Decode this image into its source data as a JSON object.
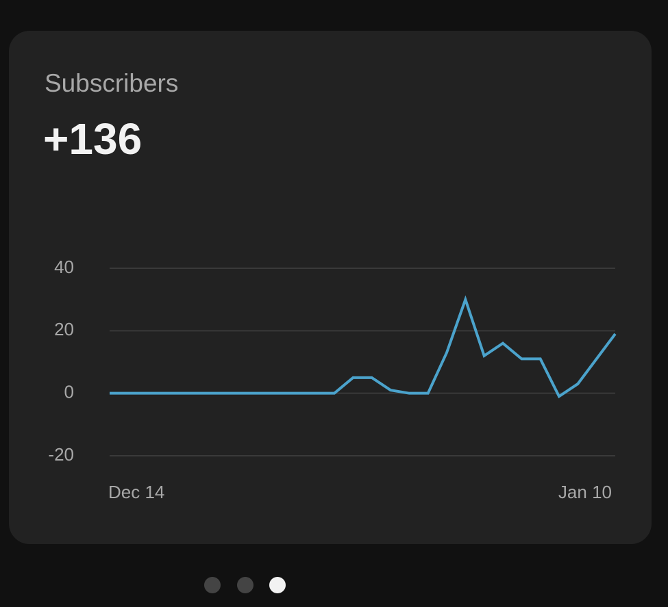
{
  "card": {
    "title": "Subscribers",
    "total": "+136"
  },
  "chart_data": {
    "type": "line",
    "categories": [
      "Dec 14",
      null,
      null,
      null,
      null,
      null,
      null,
      null,
      null,
      null,
      null,
      null,
      null,
      null,
      null,
      null,
      null,
      null,
      null,
      null,
      null,
      null,
      null,
      null,
      null,
      null,
      null,
      "Jan 10"
    ],
    "values": [
      0,
      0,
      0,
      0,
      0,
      0,
      0,
      0,
      0,
      0,
      0,
      0,
      0,
      5,
      5,
      1,
      0,
      0,
      13,
      30,
      12,
      16,
      11,
      11,
      -1,
      3,
      11,
      19
    ],
    "color": "#4ba3cc",
    "ylim": [
      -20,
      40
    ],
    "yticks": [
      -20,
      0,
      20,
      40
    ],
    "grid": true
  }
}
